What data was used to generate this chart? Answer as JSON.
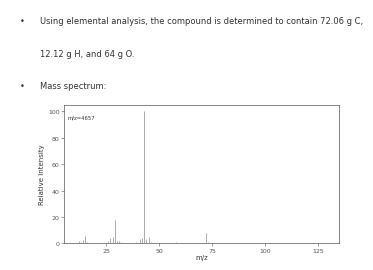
{
  "bullet_lines": [
    "Using elemental analysis, the compound is determined to contain 72.06 g C,",
    "12.12 g H, and 64 g O.",
    "Mass spectrum:"
  ],
  "annotation": "m/z=4657",
  "peaks": [
    [
      12,
      1.5
    ],
    [
      13,
      1.0
    ],
    [
      14,
      2.5
    ],
    [
      15,
      6.0
    ],
    [
      16,
      0.8
    ],
    [
      18,
      0.5
    ],
    [
      26,
      2.0
    ],
    [
      27,
      4.5
    ],
    [
      28,
      5.0
    ],
    [
      29,
      18.0
    ],
    [
      30,
      1.5
    ],
    [
      31,
      2.0
    ],
    [
      32,
      1.0
    ],
    [
      39,
      1.0
    ],
    [
      40,
      0.5
    ],
    [
      41,
      3.0
    ],
    [
      42,
      4.5
    ],
    [
      43,
      100.0
    ],
    [
      44,
      3.5
    ],
    [
      45,
      5.0
    ],
    [
      46,
      1.0
    ],
    [
      57,
      0.5
    ],
    [
      58,
      1.0
    ],
    [
      72,
      8.0
    ],
    [
      73,
      1.0
    ],
    [
      85,
      0.5
    ],
    [
      86,
      0.5
    ],
    [
      99,
      0.3
    ],
    [
      100,
      0.3
    ],
    [
      113,
      0.3
    ],
    [
      114,
      0.3
    ],
    [
      127,
      0.2
    ],
    [
      128,
      0.2
    ]
  ],
  "xlim": [
    5,
    135
  ],
  "ylim": [
    0,
    105
  ],
  "xticks": [
    25,
    50,
    75,
    100,
    125
  ],
  "yticks": [
    0,
    20,
    40,
    60,
    80,
    100
  ],
  "xlabel": "m/z",
  "ylabel": "Relative Intensity",
  "peak_color": "#888888",
  "axis_color": "#555555",
  "text_color": "#333333",
  "bg_color": "#ffffff",
  "font_size_axis": 5,
  "font_size_tick": 4.5,
  "font_size_bullet": 6.0,
  "chart_bg": "#ffffff"
}
